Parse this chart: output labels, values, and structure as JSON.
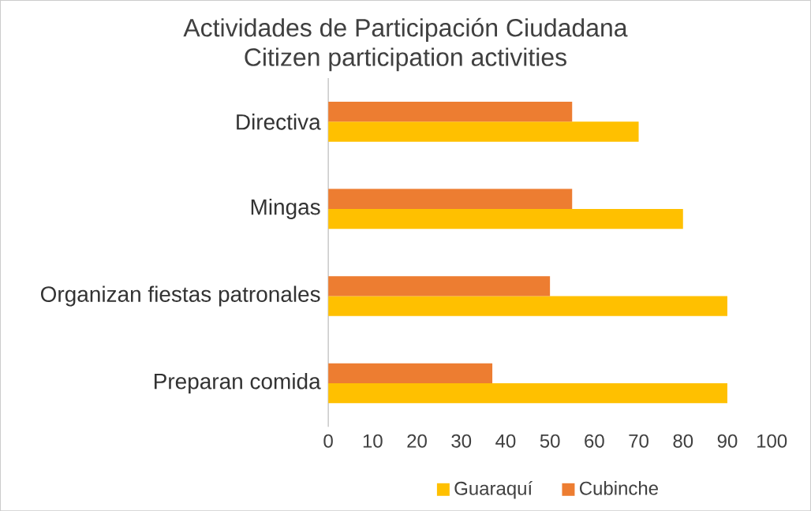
{
  "chart_data": {
    "type": "bar",
    "orientation": "horizontal",
    "title": "Actividades de Participación Ciudadana",
    "subtitle": "Citizen participation activities",
    "categories": [
      "Directiva",
      "Mingas",
      "Organizan fiestas patronales",
      "Preparan comida"
    ],
    "series": [
      {
        "name": "Guaraquí",
        "color": "#ffc000",
        "values": [
          70,
          80,
          90,
          90
        ]
      },
      {
        "name": "Cubinche",
        "color": "#ed7d31",
        "values": [
          55,
          55,
          50,
          37
        ]
      }
    ],
    "xlim": [
      0,
      100
    ],
    "xticks": [
      0,
      10,
      20,
      30,
      40,
      50,
      60,
      70,
      80,
      90,
      100
    ],
    "grid": false,
    "legend": "bottom"
  }
}
